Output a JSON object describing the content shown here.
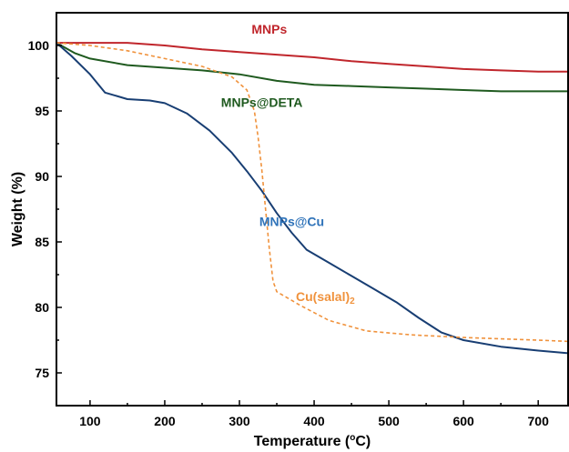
{
  "chart_data": {
    "type": "line",
    "xlabel": "Temperature (",
    "xlabel_sup": "o",
    "xlabel_unit": "C)",
    "ylabel": "Weight (%)",
    "xlim": [
      55,
      740
    ],
    "ylim": [
      72.5,
      102.5
    ],
    "xticks": [
      100,
      200,
      300,
      400,
      500,
      600,
      700
    ],
    "yticks": [
      75,
      80,
      85,
      90,
      95,
      100
    ],
    "grid": false,
    "series": [
      {
        "name": "MNPs",
        "color": "#c0262c",
        "dash": "solid",
        "x": [
          55,
          100,
          150,
          200,
          250,
          300,
          350,
          400,
          450,
          500,
          550,
          600,
          650,
          700,
          740
        ],
        "y": [
          100.2,
          100.2,
          100.2,
          100.0,
          99.7,
          99.5,
          99.3,
          99.1,
          98.8,
          98.6,
          98.4,
          98.2,
          98.1,
          98.0,
          98.0
        ]
      },
      {
        "name": "MNPs@DETA",
        "color": "#1f5a1f",
        "dash": "solid",
        "x": [
          55,
          80,
          100,
          150,
          200,
          250,
          300,
          350,
          400,
          450,
          500,
          550,
          600,
          650,
          700,
          740
        ],
        "y": [
          100.2,
          99.4,
          99.0,
          98.5,
          98.3,
          98.1,
          97.8,
          97.3,
          97.0,
          96.9,
          96.8,
          96.7,
          96.6,
          96.5,
          96.5,
          96.5
        ]
      },
      {
        "name": "MNPs@Cu",
        "color": "#183e73",
        "dash": "solid",
        "x": [
          55,
          75,
          100,
          120,
          150,
          180,
          200,
          230,
          260,
          290,
          310,
          330,
          350,
          370,
          390,
          420,
          450,
          480,
          510,
          540,
          570,
          600,
          650,
          700,
          740
        ],
        "y": [
          100.2,
          99.2,
          97.8,
          96.4,
          95.9,
          95.8,
          95.6,
          94.8,
          93.5,
          91.8,
          90.4,
          88.9,
          87.2,
          85.7,
          84.4,
          83.4,
          82.4,
          81.4,
          80.4,
          79.2,
          78.1,
          77.5,
          77.0,
          76.7,
          76.5
        ]
      },
      {
        "name": "Cu(salal)",
        "name_sub": "2",
        "color": "#f0923c",
        "dash": "dashed",
        "x": [
          55,
          100,
          150,
          200,
          250,
          290,
          310,
          320,
          325,
          330,
          335,
          340,
          345,
          350,
          380,
          420,
          470,
          530,
          600,
          650,
          700,
          740
        ],
        "y": [
          100.2,
          100.0,
          99.6,
          99.0,
          98.4,
          97.6,
          96.6,
          95.0,
          93.0,
          90.5,
          87.5,
          84.5,
          82.0,
          81.2,
          80.2,
          79.0,
          78.2,
          77.9,
          77.7,
          77.6,
          77.5,
          77.4
        ]
      }
    ],
    "labels": [
      {
        "series": 0,
        "text": "MNPs",
        "x": 340,
        "y": 100.9,
        "color": "#c0262c"
      },
      {
        "series": 1,
        "text": "MNPs@DETA",
        "x": 330,
        "y": 95.3,
        "color": "#1f5a1f"
      },
      {
        "series": 2,
        "text": "MNPs@Cu",
        "x": 370,
        "y": 86.2,
        "color": "#2f73b9"
      },
      {
        "series": 3,
        "text": "Cu(salal)",
        "sub": "2",
        "x": 415,
        "y": 80.5,
        "color": "#f0923c"
      }
    ]
  }
}
